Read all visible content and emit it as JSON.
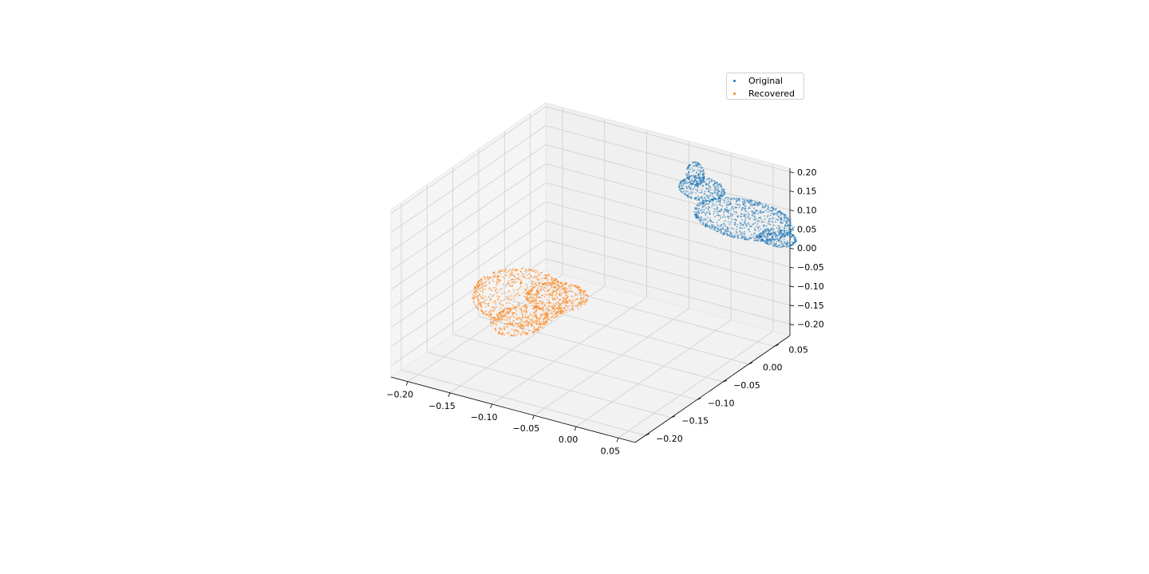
{
  "chart_data": {
    "type": "scatter",
    "projection": "3d",
    "title": "",
    "xlabel": "",
    "ylabel": "",
    "zlabel": "",
    "xlim": [
      -0.22,
      0.07
    ],
    "ylim": [
      -0.22,
      0.08
    ],
    "zlim": [
      -0.23,
      0.21
    ],
    "x_ticks": [
      "−0.20",
      "−0.15",
      "−0.10",
      "−0.05",
      "0.00",
      "0.05"
    ],
    "y_ticks": [
      "−0.20",
      "−0.15",
      "−0.10",
      "−0.05",
      "0.00",
      "0.05"
    ],
    "z_ticks": [
      "−0.20",
      "−0.15",
      "−0.10",
      "−0.05",
      "0.00",
      "0.05",
      "0.10",
      "0.15",
      "0.20"
    ],
    "x_tick_values": [
      -0.2,
      -0.15,
      -0.1,
      -0.05,
      0.0,
      0.05
    ],
    "y_tick_values": [
      -0.2,
      -0.15,
      -0.1,
      -0.05,
      0.0,
      0.05
    ],
    "z_tick_values": [
      -0.2,
      -0.15,
      -0.1,
      -0.05,
      0.0,
      0.05,
      0.1,
      0.15,
      0.2
    ],
    "grid": true,
    "legend_position": "top-right",
    "series": [
      {
        "name": "Original",
        "color": "#1f77b4",
        "shape": "bunny point cloud",
        "center": [
          0.03,
          0.04,
          0.1
        ],
        "extent": [
          0.1,
          0.08,
          0.1
        ],
        "approx_point_count": 1500
      },
      {
        "name": "Recovered",
        "color": "#ff7f0e",
        "shape": "bunny point cloud (rotated)",
        "center": [
          -0.17,
          -0.05,
          -0.16
        ],
        "extent": [
          0.09,
          0.1,
          0.1
        ],
        "approx_point_count": 1300
      }
    ]
  }
}
